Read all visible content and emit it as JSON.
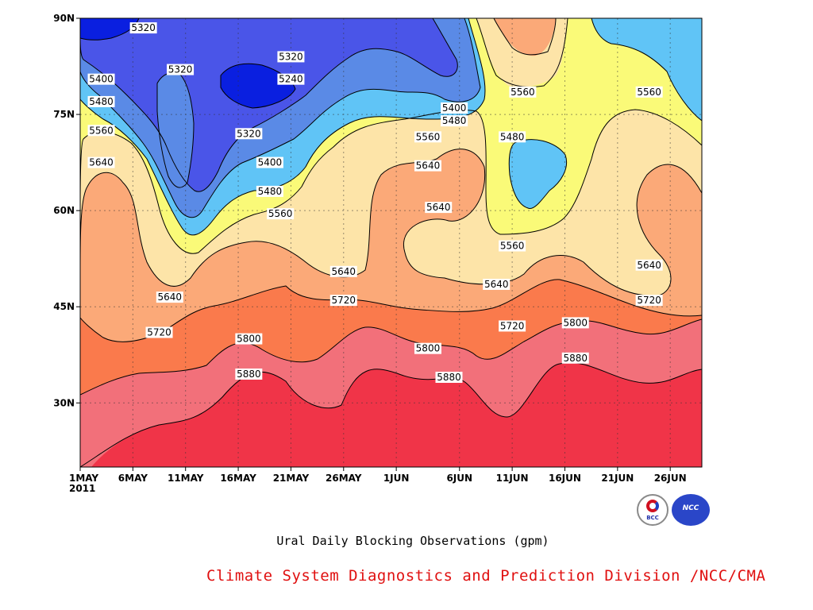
{
  "caption": "Ural Daily Blocking Observations (gpm)",
  "credit": "Climate System Diagnostics and Prediction Division /NCC/CMA",
  "logos": {
    "left": "BCC",
    "right": "NCC"
  },
  "colors": {
    "below_5240": "#0a1fe0",
    "5240_5320": "#4a55e8",
    "5320_5400": "#5a8ae6",
    "5400_5480": "#60c4f6",
    "5480_5560": "#fafa78",
    "5560_5640": "#fde4a8",
    "5640_5720": "#fba978",
    "5720_5800": "#fa7a4c",
    "5800_5880": "#f2707a",
    "above_5880": "#f03448",
    "credit_text": "#e01010"
  },
  "chart_data": {
    "type": "contour",
    "x_ticks": [
      "1MAY",
      "6MAY",
      "11MAY",
      "16MAY",
      "21MAY",
      "26MAY",
      "1JUN",
      "6JUN",
      "11JUN",
      "16JUN",
      "21JUN",
      "26JUN"
    ],
    "x_year": "2011",
    "y_ticks": [
      "90N",
      "75N",
      "60N",
      "45N",
      "30N"
    ],
    "xlim": [
      "1MAY",
      "29JUN"
    ],
    "ylim": [
      20,
      90
    ],
    "contour_levels": [
      5240,
      5320,
      5400,
      5480,
      5560,
      5640,
      5720,
      5800,
      5880
    ],
    "contour_labels": [
      {
        "text": "5320",
        "x": 6.0,
        "y": 88.5
      },
      {
        "text": "5320",
        "x": 20.0,
        "y": 84.0
      },
      {
        "text": "5320",
        "x": 9.5,
        "y": 82.0
      },
      {
        "text": "5240",
        "x": 20.0,
        "y": 80.5
      },
      {
        "text": "5400",
        "x": 2.0,
        "y": 80.5
      },
      {
        "text": "5480",
        "x": 2.0,
        "y": 77.0
      },
      {
        "text": "5560",
        "x": 2.0,
        "y": 72.5
      },
      {
        "text": "5640",
        "x": 2.0,
        "y": 67.5
      },
      {
        "text": "5320",
        "x": 16.0,
        "y": 72.0
      },
      {
        "text": "5400",
        "x": 18.0,
        "y": 67.5
      },
      {
        "text": "5480",
        "x": 18.0,
        "y": 63.0
      },
      {
        "text": "5560",
        "x": 19.0,
        "y": 59.5
      },
      {
        "text": "5640",
        "x": 8.5,
        "y": 46.5
      },
      {
        "text": "5720",
        "x": 7.5,
        "y": 41.0
      },
      {
        "text": "5800",
        "x": 16.0,
        "y": 40.0
      },
      {
        "text": "5880",
        "x": 16.0,
        "y": 34.5
      },
      {
        "text": "5640",
        "x": 25.0,
        "y": 50.5
      },
      {
        "text": "5720",
        "x": 25.0,
        "y": 46.0
      },
      {
        "text": "5400",
        "x": 35.5,
        "y": 76.0
      },
      {
        "text": "5480",
        "x": 35.5,
        "y": 74.0
      },
      {
        "text": "5560",
        "x": 33.0,
        "y": 71.5
      },
      {
        "text": "5640",
        "x": 33.0,
        "y": 67.0
      },
      {
        "text": "5640",
        "x": 34.0,
        "y": 60.5
      },
      {
        "text": "5800",
        "x": 33.0,
        "y": 38.5
      },
      {
        "text": "5880",
        "x": 35.0,
        "y": 34.0
      },
      {
        "text": "5640",
        "x": 39.5,
        "y": 48.5
      },
      {
        "text": "5720",
        "x": 41.0,
        "y": 42.0
      },
      {
        "text": "5560",
        "x": 42.0,
        "y": 78.5
      },
      {
        "text": "5480",
        "x": 41.0,
        "y": 71.5
      },
      {
        "text": "5560",
        "x": 41.0,
        "y": 54.5
      },
      {
        "text": "5800",
        "x": 47.0,
        "y": 42.5
      },
      {
        "text": "5880",
        "x": 47.0,
        "y": 37.0
      },
      {
        "text": "5560",
        "x": 54.0,
        "y": 78.5
      },
      {
        "text": "5640",
        "x": 54.0,
        "y": 51.5
      },
      {
        "text": "5720",
        "x": 54.0,
        "y": 46.0
      }
    ]
  }
}
